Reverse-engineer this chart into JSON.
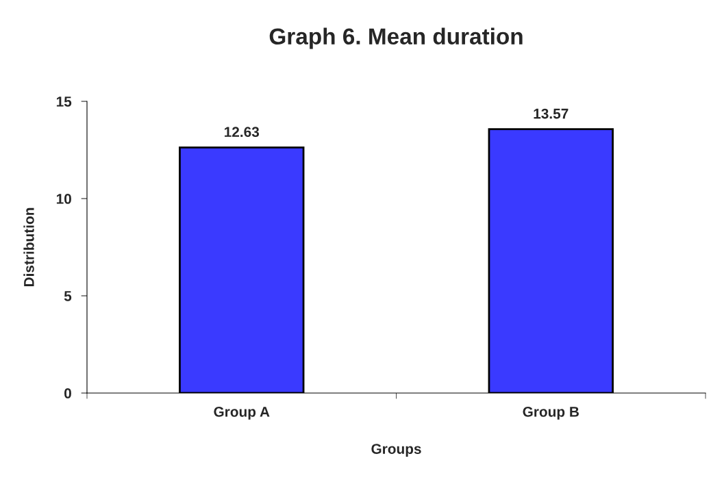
{
  "chart_data": {
    "type": "bar",
    "title": "Graph 6. Mean duration",
    "xlabel": "Groups",
    "ylabel": "Distribution",
    "categories": [
      "Group A",
      "Group B"
    ],
    "series": [
      {
        "color": "#3a3aff",
        "values": [
          12.63,
          13.57
        ]
      }
    ],
    "ylim": [
      0,
      15
    ],
    "yticks": [
      0,
      5,
      10,
      15
    ],
    "data_labels": true,
    "grid": false,
    "legend": false
  }
}
